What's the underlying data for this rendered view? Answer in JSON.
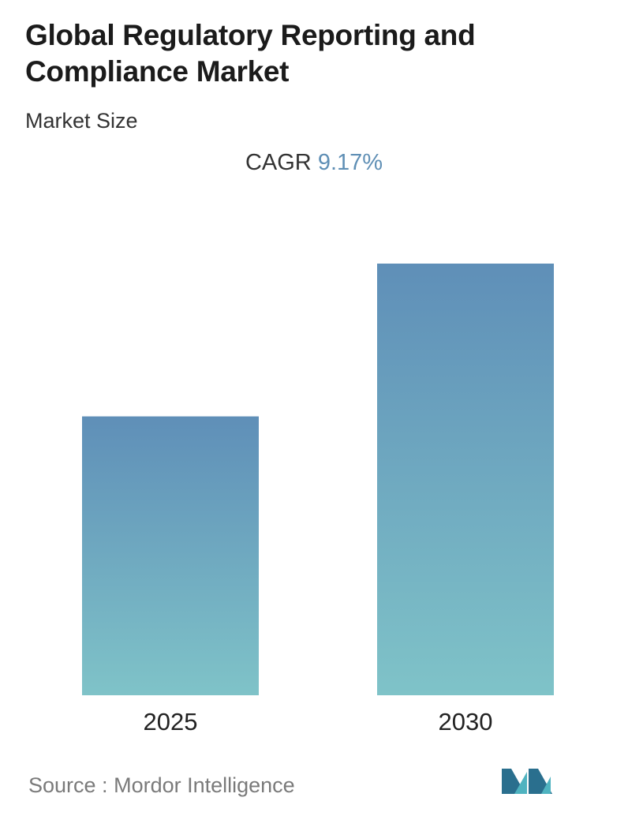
{
  "header": {
    "title": "Global Regulatory Reporting and Compliance Market",
    "subtitle": "Market Size",
    "cagr_label": "CAGR",
    "cagr_value": "9.17%"
  },
  "chart_data": {
    "type": "bar",
    "title": "Global Regulatory Reporting and Compliance Market",
    "subtitle": "Market Size",
    "categories": [
      "2025",
      "2030"
    ],
    "values": [
      64.6,
      100
    ],
    "ylim": [
      0,
      100
    ],
    "grid": false,
    "legend": "none",
    "bar_gradient": {
      "top": "#5f8fb8",
      "bottom": "#7fc3c8"
    }
  },
  "footer": {
    "source_label": "Source :",
    "source_name": "Mordor Intelligence",
    "logo_icon": "mordor-intelligence-logo-icon",
    "logo_colors": [
      "#2a6f8e",
      "#4fb3c0"
    ]
  }
}
